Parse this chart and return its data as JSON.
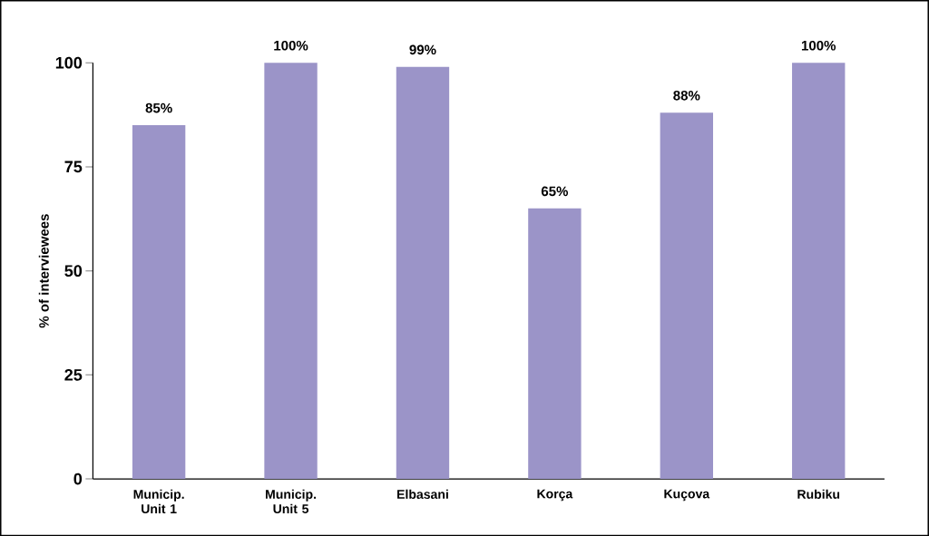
{
  "chart_data": {
    "type": "bar",
    "ylabel": "% of interviewees",
    "categories": [
      "Municip. Unit 1",
      "Municip. Unit 5",
      "Elbasani",
      "Korça",
      "Kuçova",
      "Rubiku"
    ],
    "values": [
      85,
      100,
      99,
      65,
      88,
      100
    ],
    "value_labels": [
      "85%",
      "100%",
      "99%",
      "65%",
      "88%",
      "100%"
    ],
    "color": "#9b94c8",
    "ylim": [
      0,
      100
    ],
    "yticks": [
      0,
      25,
      50,
      75,
      100
    ]
  }
}
